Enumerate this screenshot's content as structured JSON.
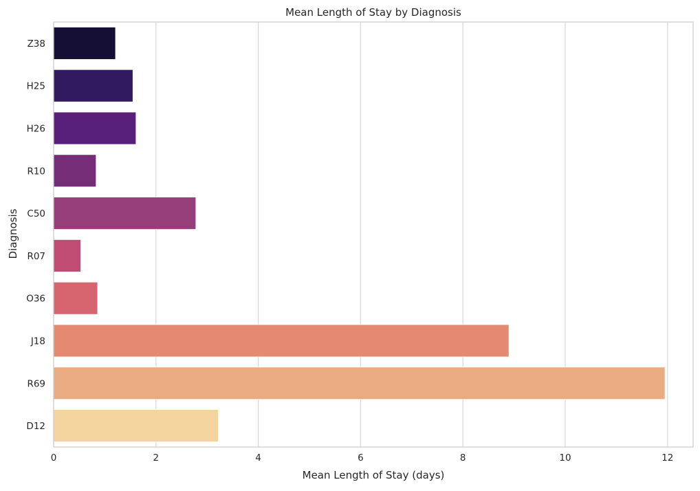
{
  "chart_data": {
    "type": "bar",
    "orientation": "horizontal",
    "title": "Mean Length of Stay by Diagnosis",
    "xlabel": "Mean Length of Stay (days)",
    "ylabel": "Diagnosis",
    "categories": [
      "Z38",
      "H25",
      "H26",
      "R10",
      "C50",
      "R07",
      "O36",
      "J18",
      "R69",
      "D12"
    ],
    "values": [
      1.21,
      1.55,
      1.61,
      0.83,
      2.78,
      0.53,
      0.86,
      8.9,
      11.95,
      3.22
    ],
    "colors": [
      "#150f35",
      "#311a60",
      "#581f7b",
      "#762d77",
      "#963e79",
      "#c04b73",
      "#d7656f",
      "#e48a70",
      "#ebab82",
      "#f4d49e"
    ],
    "xlim": [
      0,
      12.5
    ],
    "xticks": [
      0,
      2,
      4,
      6,
      8,
      10,
      12
    ],
    "grid": "vertical",
    "legend": "none"
  }
}
